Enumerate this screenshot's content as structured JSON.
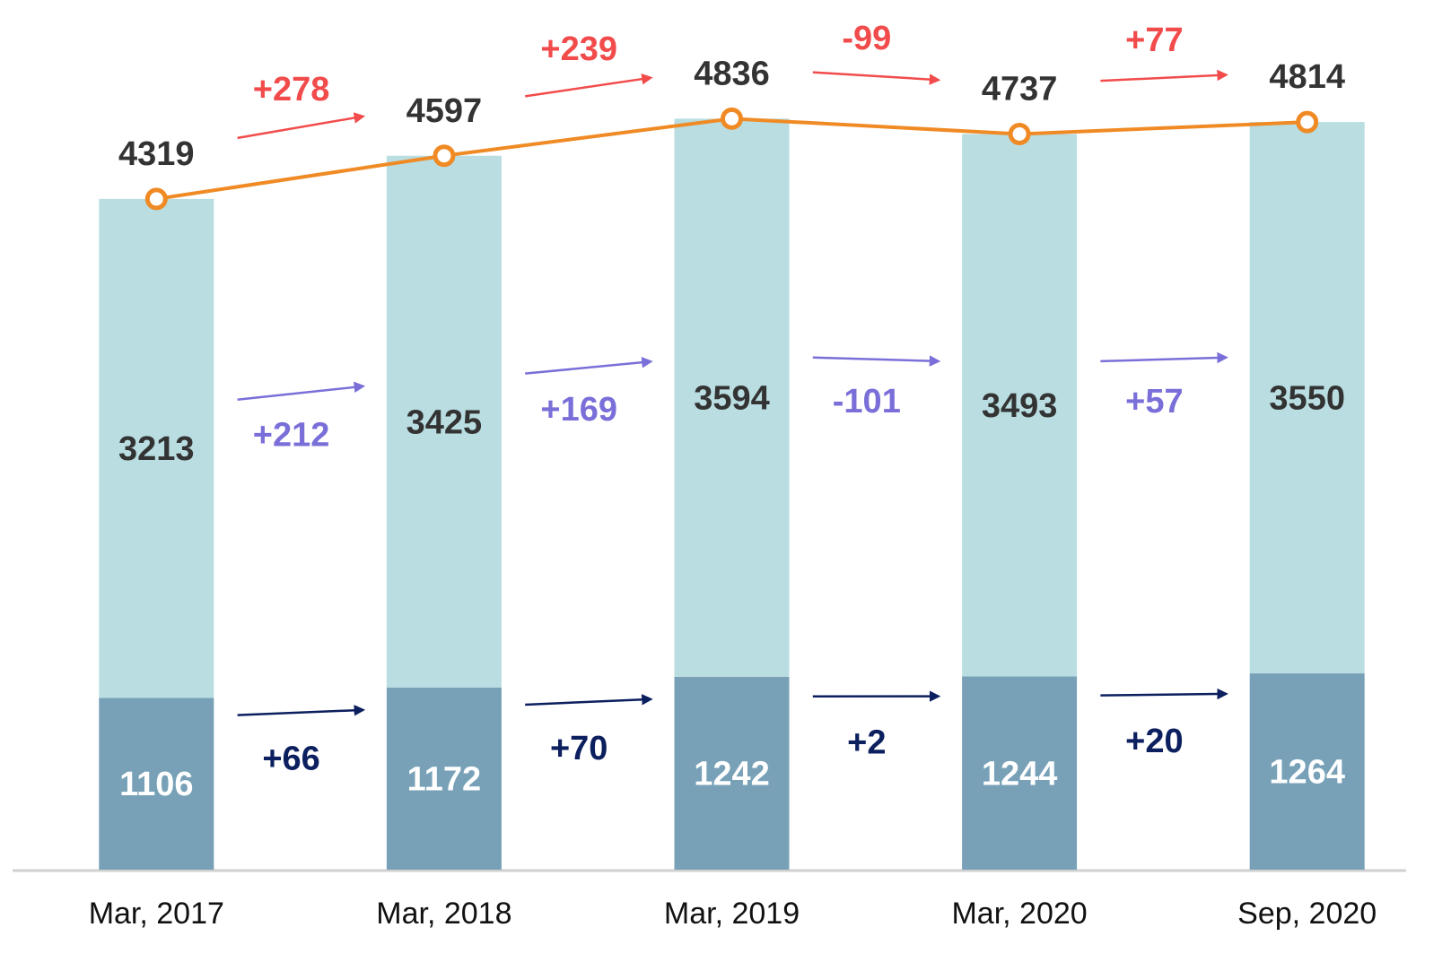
{
  "chart_data": {
    "type": "stacked_bar_line",
    "categories": [
      "Mar, 2017",
      "Mar, 2018",
      "Mar, 2019",
      "Mar, 2020",
      "Sep, 2020"
    ],
    "series": [
      {
        "color": "#78a1b8",
        "values": [
          1106,
          1172,
          1242,
          1244,
          1264
        ]
      },
      {
        "color": "#b9dde1",
        "values": [
          3213,
          3425,
          3594,
          3493,
          3550
        ]
      }
    ],
    "totals": {
      "color": "#f08a24",
      "values": [
        4319,
        4597,
        4836,
        4737,
        4814
      ]
    },
    "changes": [
      {
        "color": "#f24b4b",
        "values": [
          278,
          239,
          -99,
          77
        ],
        "value_labels": [
          "+278",
          "+239",
          "-99",
          "+77"
        ]
      },
      {
        "color": "#7a6fd8",
        "values": [
          212,
          169,
          -101,
          57
        ],
        "value_labels": [
          "+212",
          "+169",
          "-101",
          "+57"
        ]
      },
      {
        "color": "#0c1f5e",
        "values": [
          66,
          70,
          2,
          20
        ],
        "value_labels": [
          "+66",
          "+70",
          "+2",
          "+20"
        ]
      }
    ],
    "ylim": [
      0,
      5600
    ]
  }
}
